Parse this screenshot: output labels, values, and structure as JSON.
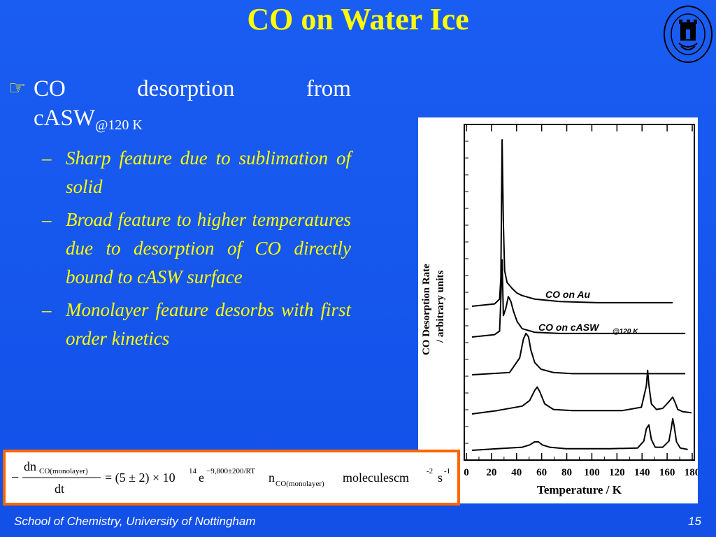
{
  "slide": {
    "title": "CO on Water Ice",
    "footer": "School of Chemistry, University of Nottingham",
    "page_number": "15",
    "logo_text": "THE UNIVERSITY OF NOTTINGHAM"
  },
  "bullet": {
    "marker": "☞",
    "words": [
      "CO",
      "desorption",
      "from"
    ],
    "line2": "cASW",
    "subscript": "@120 K"
  },
  "subbullets": [
    {
      "dash": "–",
      "text": "Sharp feature due to sublimation of solid"
    },
    {
      "dash": "–",
      "text": "Broad feature to higher temperatures due to desorption of CO directly bound to cASW surface"
    },
    {
      "dash": "–",
      "text": "Monolayer feature desorbs with first order kinetics"
    }
  ],
  "chart_data": {
    "type": "line",
    "xlabel": "Temperature / K",
    "ylabel_line1": "CO Desorption Rate",
    "ylabel_line2": "/ arbitrary units",
    "xlim": [
      0,
      180
    ],
    "x_ticks": [
      "0",
      "20",
      "40",
      "60",
      "80",
      "100",
      "120",
      "140",
      "160",
      "180"
    ],
    "annotations": [
      {
        "text": "CO on Au"
      },
      {
        "text": "CO on cASW",
        "subscript": "@120 K"
      }
    ],
    "series": [
      {
        "values_x": [
          0,
          18,
          22,
          23,
          24,
          25,
          26,
          28,
          32,
          36,
          40,
          50,
          70,
          100,
          140,
          160
        ],
        "values_y": [
          0,
          0.2,
          0.6,
          2.4,
          14,
          7,
          3,
          2,
          1.5,
          1.1,
          0.9,
          0.6,
          0.4,
          0.3,
          0.3,
          0.3
        ]
      },
      {
        "values_x": [
          0,
          18,
          22,
          23,
          24,
          25,
          27,
          29,
          31,
          33,
          36,
          40,
          50,
          70,
          110,
          150,
          170
        ],
        "values_y": [
          0,
          0.2,
          0.5,
          3.2,
          6.5,
          1.8,
          2.4,
          3.4,
          3,
          2.2,
          1.3,
          0.7,
          0.4,
          0.3,
          0.3,
          0.3,
          0.3
        ]
      },
      {
        "values_x": [
          0,
          30,
          38,
          41,
          43,
          45,
          47,
          50,
          55,
          65,
          80,
          120,
          170
        ],
        "values_y": [
          0,
          0.2,
          1.5,
          3.2,
          3.7,
          3.4,
          2.2,
          1.1,
          0.5,
          0.2,
          0.1,
          0.1,
          0.1
        ]
      },
      {
        "values_x": [
          0,
          20,
          40,
          46,
          50,
          52,
          54,
          58,
          65,
          80,
          120,
          135,
          139,
          140,
          141,
          143,
          147,
          152,
          157,
          160,
          162,
          164,
          168,
          175
        ],
        "values_y": [
          0,
          0.3,
          0.7,
          1.2,
          2.1,
          2.4,
          2,
          0.9,
          0.4,
          0.3,
          0.3,
          0.6,
          2.5,
          3.9,
          2.6,
          0.9,
          0.4,
          0.5,
          1.1,
          1.5,
          1,
          0.4,
          0.2,
          0.1
        ]
      },
      {
        "values_x": [
          0,
          20,
          40,
          46,
          50,
          53,
          56,
          62,
          75,
          110,
          132,
          137,
          139,
          141,
          143,
          146,
          152,
          157,
          159,
          160,
          161,
          163,
          166,
          172
        ],
        "values_y": [
          0,
          0.2,
          0.4,
          0.7,
          1.1,
          1.1,
          0.7,
          0.4,
          0.2,
          0.2,
          0.3,
          1.2,
          2.8,
          3.3,
          1.4,
          0.4,
          0.4,
          1.2,
          3,
          4.1,
          3.3,
          1.1,
          0.3,
          0.1
        ]
      }
    ]
  },
  "equation": {
    "minus": "−",
    "numerator": "dn",
    "num_sub": "CO(monolayer)",
    "denominator": "dt",
    "equals": "= (5 ± 2) × 10",
    "power": "14",
    "e": "e",
    "exponent": "−9,800±200/RT",
    "n": "n",
    "n_sub": "CO(monolayer)",
    "units": "moleculescm",
    "unit_pow1": "-2",
    "s": "s",
    "unit_pow2": "-1"
  }
}
